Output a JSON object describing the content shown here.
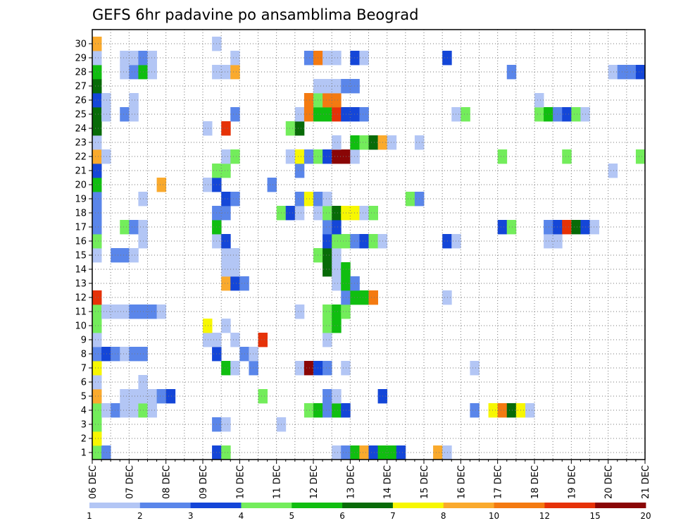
{
  "chart_data": {
    "type": "heatmap",
    "title": "GEFS 6hr padavine po ansamblima Beograd",
    "members": [
      1,
      2,
      3,
      4,
      5,
      6,
      7,
      8,
      9,
      10,
      11,
      12,
      13,
      14,
      15,
      16,
      17,
      18,
      19,
      20,
      21,
      22,
      23,
      24,
      25,
      26,
      27,
      28,
      29,
      30
    ],
    "x_tick_labels": [
      "06 DEC",
      "07 DEC",
      "08 DEC",
      "09 DEC",
      "10 DEC",
      "11 DEC",
      "12 DEC",
      "13 DEC",
      "14 DEC",
      "15 DEC",
      "16 DEC",
      "17 DEC",
      "18 DEC",
      "19 DEC",
      "20 DEC",
      "21 DEC"
    ],
    "steps_per_day": 4,
    "n_steps": 60,
    "grid": true,
    "colorbar": {
      "labels": [
        "1",
        "2",
        "3",
        "4",
        "5",
        "6",
        "7",
        "8",
        "10",
        "12",
        "15",
        "20"
      ],
      "colors": [
        "#b3c6f5",
        "#5a86ea",
        "#1446d8",
        "#73ed5b",
        "#10be10",
        "#086b08",
        "#f7f702",
        "#faaa2d",
        "#f47a11",
        "#e63208",
        "#8a0606"
      ]
    },
    "cells": [
      {
        "m": 1,
        "t": 0,
        "v": 4
      },
      {
        "m": 1,
        "t": 1,
        "v": 2
      },
      {
        "m": 1,
        "t": 13,
        "v": 3
      },
      {
        "m": 1,
        "t": 14,
        "v": 4
      },
      {
        "m": 1,
        "t": 26,
        "v": 1
      },
      {
        "m": 1,
        "t": 27,
        "v": 2
      },
      {
        "m": 1,
        "t": 28,
        "v": 5
      },
      {
        "m": 1,
        "t": 29,
        "v": 8
      },
      {
        "m": 1,
        "t": 30,
        "v": 3
      },
      {
        "m": 1,
        "t": 31,
        "v": 5
      },
      {
        "m": 1,
        "t": 32,
        "v": 5
      },
      {
        "m": 1,
        "t": 33,
        "v": 3
      },
      {
        "m": 1,
        "t": 37,
        "v": 8
      },
      {
        "m": 1,
        "t": 38,
        "v": 1
      },
      {
        "m": 2,
        "t": 0,
        "v": 7
      },
      {
        "m": 3,
        "t": 0,
        "v": 4
      },
      {
        "m": 3,
        "t": 13,
        "v": 2
      },
      {
        "m": 3,
        "t": 14,
        "v": 1
      },
      {
        "m": 3,
        "t": 20,
        "v": 1
      },
      {
        "m": 4,
        "t": 0,
        "v": 4
      },
      {
        "m": 4,
        "t": 1,
        "v": 1
      },
      {
        "m": 4,
        "t": 2,
        "v": 2
      },
      {
        "m": 4,
        "t": 3,
        "v": 1
      },
      {
        "m": 4,
        "t": 4,
        "v": 1
      },
      {
        "m": 4,
        "t": 5,
        "v": 4
      },
      {
        "m": 4,
        "t": 6,
        "v": 1
      },
      {
        "m": 4,
        "t": 23,
        "v": 4
      },
      {
        "m": 4,
        "t": 24,
        "v": 5
      },
      {
        "m": 4,
        "t": 25,
        "v": 2
      },
      {
        "m": 4,
        "t": 26,
        "v": 5
      },
      {
        "m": 4,
        "t": 27,
        "v": 3
      },
      {
        "m": 4,
        "t": 41,
        "v": 2
      },
      {
        "m": 4,
        "t": 43,
        "v": 7
      },
      {
        "m": 4,
        "t": 44,
        "v": 9
      },
      {
        "m": 4,
        "t": 45,
        "v": 6
      },
      {
        "m": 4,
        "t": 46,
        "v": 7
      },
      {
        "m": 4,
        "t": 47,
        "v": 1
      },
      {
        "m": 5,
        "t": 0,
        "v": 8
      },
      {
        "m": 5,
        "t": 3,
        "v": 1
      },
      {
        "m": 5,
        "t": 4,
        "v": 1
      },
      {
        "m": 5,
        "t": 5,
        "v": 1
      },
      {
        "m": 5,
        "t": 6,
        "v": 1
      },
      {
        "m": 5,
        "t": 7,
        "v": 2
      },
      {
        "m": 5,
        "t": 8,
        "v": 3
      },
      {
        "m": 5,
        "t": 18,
        "v": 4
      },
      {
        "m": 5,
        "t": 25,
        "v": 2
      },
      {
        "m": 5,
        "t": 26,
        "v": 1
      },
      {
        "m": 5,
        "t": 31,
        "v": 3
      },
      {
        "m": 6,
        "t": 0,
        "v": 1
      },
      {
        "m": 6,
        "t": 5,
        "v": 1
      },
      {
        "m": 7,
        "t": 0,
        "v": 7
      },
      {
        "m": 7,
        "t": 14,
        "v": 5
      },
      {
        "m": 7,
        "t": 15,
        "v": 1
      },
      {
        "m": 7,
        "t": 17,
        "v": 2
      },
      {
        "m": 7,
        "t": 22,
        "v": 1
      },
      {
        "m": 7,
        "t": 23,
        "v": 11
      },
      {
        "m": 7,
        "t": 24,
        "v": 3
      },
      {
        "m": 7,
        "t": 25,
        "v": 2
      },
      {
        "m": 7,
        "t": 27,
        "v": 1
      },
      {
        "m": 7,
        "t": 41,
        "v": 1
      },
      {
        "m": 8,
        "t": 0,
        "v": 2
      },
      {
        "m": 8,
        "t": 1,
        "v": 3
      },
      {
        "m": 8,
        "t": 2,
        "v": 2
      },
      {
        "m": 8,
        "t": 3,
        "v": 1
      },
      {
        "m": 8,
        "t": 4,
        "v": 2
      },
      {
        "m": 8,
        "t": 5,
        "v": 2
      },
      {
        "m": 8,
        "t": 13,
        "v": 3
      },
      {
        "m": 8,
        "t": 16,
        "v": 2
      },
      {
        "m": 8,
        "t": 17,
        "v": 1
      },
      {
        "m": 9,
        "t": 0,
        "v": 1
      },
      {
        "m": 9,
        "t": 12,
        "v": 1
      },
      {
        "m": 9,
        "t": 13,
        "v": 1
      },
      {
        "m": 9,
        "t": 15,
        "v": 1
      },
      {
        "m": 9,
        "t": 18,
        "v": 10
      },
      {
        "m": 9,
        "t": 25,
        "v": 1
      },
      {
        "m": 10,
        "t": 0,
        "v": 4
      },
      {
        "m": 10,
        "t": 12,
        "v": 7
      },
      {
        "m": 10,
        "t": 14,
        "v": 1
      },
      {
        "m": 10,
        "t": 25,
        "v": 4
      },
      {
        "m": 10,
        "t": 26,
        "v": 5
      },
      {
        "m": 11,
        "t": 0,
        "v": 4
      },
      {
        "m": 11,
        "t": 1,
        "v": 1
      },
      {
        "m": 11,
        "t": 2,
        "v": 1
      },
      {
        "m": 11,
        "t": 3,
        "v": 1
      },
      {
        "m": 11,
        "t": 4,
        "v": 2
      },
      {
        "m": 11,
        "t": 5,
        "v": 2
      },
      {
        "m": 11,
        "t": 6,
        "v": 2
      },
      {
        "m": 11,
        "t": 7,
        "v": 1
      },
      {
        "m": 11,
        "t": 22,
        "v": 1
      },
      {
        "m": 11,
        "t": 25,
        "v": 4
      },
      {
        "m": 11,
        "t": 26,
        "v": 5
      },
      {
        "m": 11,
        "t": 27,
        "v": 4
      },
      {
        "m": 12,
        "t": 0,
        "v": 10
      },
      {
        "m": 12,
        "t": 27,
        "v": 2
      },
      {
        "m": 12,
        "t": 28,
        "v": 5
      },
      {
        "m": 12,
        "t": 29,
        "v": 5
      },
      {
        "m": 12,
        "t": 30,
        "v": 9
      },
      {
        "m": 12,
        "t": 38,
        "v": 1
      },
      {
        "m": 13,
        "t": 14,
        "v": 8
      },
      {
        "m": 13,
        "t": 15,
        "v": 3
      },
      {
        "m": 13,
        "t": 16,
        "v": 2
      },
      {
        "m": 13,
        "t": 26,
        "v": 1
      },
      {
        "m": 13,
        "t": 27,
        "v": 5
      },
      {
        "m": 13,
        "t": 28,
        "v": 2
      },
      {
        "m": 14,
        "t": 14,
        "v": 1
      },
      {
        "m": 14,
        "t": 15,
        "v": 1
      },
      {
        "m": 14,
        "t": 25,
        "v": 6
      },
      {
        "m": 14,
        "t": 26,
        "v": 1
      },
      {
        "m": 14,
        "t": 27,
        "v": 5
      },
      {
        "m": 15,
        "t": 0,
        "v": 1
      },
      {
        "m": 15,
        "t": 2,
        "v": 2
      },
      {
        "m": 15,
        "t": 3,
        "v": 2
      },
      {
        "m": 15,
        "t": 4,
        "v": 1
      },
      {
        "m": 15,
        "t": 14,
        "v": 1
      },
      {
        "m": 15,
        "t": 15,
        "v": 1
      },
      {
        "m": 15,
        "t": 24,
        "v": 4
      },
      {
        "m": 15,
        "t": 25,
        "v": 6
      },
      {
        "m": 15,
        "t": 26,
        "v": 1
      },
      {
        "m": 16,
        "t": 0,
        "v": 4
      },
      {
        "m": 16,
        "t": 5,
        "v": 1
      },
      {
        "m": 16,
        "t": 13,
        "v": 1
      },
      {
        "m": 16,
        "t": 14,
        "v": 3
      },
      {
        "m": 16,
        "t": 25,
        "v": 3
      },
      {
        "m": 16,
        "t": 26,
        "v": 4
      },
      {
        "m": 16,
        "t": 27,
        "v": 4
      },
      {
        "m": 16,
        "t": 28,
        "v": 2
      },
      {
        "m": 16,
        "t": 29,
        "v": 3
      },
      {
        "m": 16,
        "t": 30,
        "v": 4
      },
      {
        "m": 16,
        "t": 31,
        "v": 1
      },
      {
        "m": 16,
        "t": 38,
        "v": 3
      },
      {
        "m": 16,
        "t": 39,
        "v": 1
      },
      {
        "m": 16,
        "t": 49,
        "v": 1
      },
      {
        "m": 16,
        "t": 50,
        "v": 1
      },
      {
        "m": 17,
        "t": 0,
        "v": 2
      },
      {
        "m": 17,
        "t": 3,
        "v": 4
      },
      {
        "m": 17,
        "t": 4,
        "v": 2
      },
      {
        "m": 17,
        "t": 5,
        "v": 1
      },
      {
        "m": 17,
        "t": 13,
        "v": 5
      },
      {
        "m": 17,
        "t": 25,
        "v": 2
      },
      {
        "m": 17,
        "t": 26,
        "v": 3
      },
      {
        "m": 17,
        "t": 44,
        "v": 3
      },
      {
        "m": 17,
        "t": 45,
        "v": 4
      },
      {
        "m": 17,
        "t": 49,
        "v": 2
      },
      {
        "m": 17,
        "t": 50,
        "v": 3
      },
      {
        "m": 17,
        "t": 51,
        "v": 10
      },
      {
        "m": 17,
        "t": 52,
        "v": 6
      },
      {
        "m": 17,
        "t": 53,
        "v": 3
      },
      {
        "m": 17,
        "t": 54,
        "v": 1
      },
      {
        "m": 18,
        "t": 0,
        "v": 2
      },
      {
        "m": 18,
        "t": 13,
        "v": 2
      },
      {
        "m": 18,
        "t": 14,
        "v": 2
      },
      {
        "m": 18,
        "t": 20,
        "v": 4
      },
      {
        "m": 18,
        "t": 21,
        "v": 3
      },
      {
        "m": 18,
        "t": 22,
        "v": 1
      },
      {
        "m": 18,
        "t": 24,
        "v": 1
      },
      {
        "m": 18,
        "t": 25,
        "v": 4
      },
      {
        "m": 18,
        "t": 26,
        "v": 6
      },
      {
        "m": 18,
        "t": 27,
        "v": 7
      },
      {
        "m": 18,
        "t": 28,
        "v": 7
      },
      {
        "m": 18,
        "t": 29,
        "v": 1
      },
      {
        "m": 18,
        "t": 30,
        "v": 4
      },
      {
        "m": 19,
        "t": 0,
        "v": 2
      },
      {
        "m": 19,
        "t": 5,
        "v": 1
      },
      {
        "m": 19,
        "t": 14,
        "v": 3
      },
      {
        "m": 19,
        "t": 15,
        "v": 2
      },
      {
        "m": 19,
        "t": 22,
        "v": 2
      },
      {
        "m": 19,
        "t": 23,
        "v": 7
      },
      {
        "m": 19,
        "t": 24,
        "v": 2
      },
      {
        "m": 19,
        "t": 25,
        "v": 1
      },
      {
        "m": 19,
        "t": 34,
        "v": 4
      },
      {
        "m": 19,
        "t": 35,
        "v": 2
      },
      {
        "m": 20,
        "t": 0,
        "v": 5
      },
      {
        "m": 20,
        "t": 7,
        "v": 8
      },
      {
        "m": 20,
        "t": 12,
        "v": 1
      },
      {
        "m": 20,
        "t": 13,
        "v": 3
      },
      {
        "m": 20,
        "t": 19,
        "v": 2
      },
      {
        "m": 21,
        "t": 0,
        "v": 3
      },
      {
        "m": 21,
        "t": 13,
        "v": 4
      },
      {
        "m": 21,
        "t": 14,
        "v": 4
      },
      {
        "m": 21,
        "t": 22,
        "v": 2
      },
      {
        "m": 21,
        "t": 56,
        "v": 1
      },
      {
        "m": 22,
        "t": 0,
        "v": 8
      },
      {
        "m": 22,
        "t": 1,
        "v": 1
      },
      {
        "m": 22,
        "t": 14,
        "v": 1
      },
      {
        "m": 22,
        "t": 15,
        "v": 4
      },
      {
        "m": 22,
        "t": 21,
        "v": 1
      },
      {
        "m": 22,
        "t": 22,
        "v": 7
      },
      {
        "m": 22,
        "t": 23,
        "v": 2
      },
      {
        "m": 22,
        "t": 24,
        "v": 4
      },
      {
        "m": 22,
        "t": 25,
        "v": 3
      },
      {
        "m": 22,
        "t": 26,
        "v": 11
      },
      {
        "m": 22,
        "t": 27,
        "v": 11
      },
      {
        "m": 22,
        "t": 28,
        "v": 1
      },
      {
        "m": 22,
        "t": 44,
        "v": 4
      },
      {
        "m": 22,
        "t": 51,
        "v": 4
      },
      {
        "m": 22,
        "t": 59,
        "v": 4
      },
      {
        "m": 23,
        "t": 0,
        "v": 1
      },
      {
        "m": 23,
        "t": 26,
        "v": 1
      },
      {
        "m": 23,
        "t": 28,
        "v": 5
      },
      {
        "m": 23,
        "t": 29,
        "v": 4
      },
      {
        "m": 23,
        "t": 30,
        "v": 6
      },
      {
        "m": 23,
        "t": 31,
        "v": 8
      },
      {
        "m": 23,
        "t": 32,
        "v": 1
      },
      {
        "m": 23,
        "t": 35,
        "v": 1
      },
      {
        "m": 24,
        "t": 0,
        "v": 6
      },
      {
        "m": 24,
        "t": 12,
        "v": 1
      },
      {
        "m": 24,
        "t": 14,
        "v": 10
      },
      {
        "m": 24,
        "t": 21,
        "v": 4
      },
      {
        "m": 24,
        "t": 22,
        "v": 6
      },
      {
        "m": 25,
        "t": 0,
        "v": 6
      },
      {
        "m": 25,
        "t": 1,
        "v": 1
      },
      {
        "m": 25,
        "t": 3,
        "v": 2
      },
      {
        "m": 25,
        "t": 4,
        "v": 1
      },
      {
        "m": 25,
        "t": 15,
        "v": 2
      },
      {
        "m": 25,
        "t": 22,
        "v": 1
      },
      {
        "m": 25,
        "t": 23,
        "v": 9
      },
      {
        "m": 25,
        "t": 24,
        "v": 5
      },
      {
        "m": 25,
        "t": 25,
        "v": 5
      },
      {
        "m": 25,
        "t": 26,
        "v": 10
      },
      {
        "m": 25,
        "t": 27,
        "v": 3
      },
      {
        "m": 25,
        "t": 28,
        "v": 3
      },
      {
        "m": 25,
        "t": 29,
        "v": 2
      },
      {
        "m": 25,
        "t": 39,
        "v": 1
      },
      {
        "m": 25,
        "t": 40,
        "v": 4
      },
      {
        "m": 25,
        "t": 48,
        "v": 4
      },
      {
        "m": 25,
        "t": 49,
        "v": 5
      },
      {
        "m": 25,
        "t": 50,
        "v": 2
      },
      {
        "m": 25,
        "t": 51,
        "v": 3
      },
      {
        "m": 25,
        "t": 52,
        "v": 4
      },
      {
        "m": 25,
        "t": 53,
        "v": 1
      },
      {
        "m": 26,
        "t": 0,
        "v": 3
      },
      {
        "m": 26,
        "t": 1,
        "v": 1
      },
      {
        "m": 26,
        "t": 4,
        "v": 1
      },
      {
        "m": 26,
        "t": 23,
        "v": 9
      },
      {
        "m": 26,
        "t": 24,
        "v": 4
      },
      {
        "m": 26,
        "t": 25,
        "v": 9
      },
      {
        "m": 26,
        "t": 26,
        "v": 9
      },
      {
        "m": 26,
        "t": 48,
        "v": 1
      },
      {
        "m": 27,
        "t": 0,
        "v": 6
      },
      {
        "m": 27,
        "t": 24,
        "v": 1
      },
      {
        "m": 27,
        "t": 25,
        "v": 1
      },
      {
        "m": 27,
        "t": 26,
        "v": 1
      },
      {
        "m": 27,
        "t": 27,
        "v": 2
      },
      {
        "m": 27,
        "t": 28,
        "v": 2
      },
      {
        "m": 28,
        "t": 0,
        "v": 5
      },
      {
        "m": 28,
        "t": 3,
        "v": 1
      },
      {
        "m": 28,
        "t": 4,
        "v": 2
      },
      {
        "m": 28,
        "t": 5,
        "v": 5
      },
      {
        "m": 28,
        "t": 6,
        "v": 1
      },
      {
        "m": 28,
        "t": 13,
        "v": 1
      },
      {
        "m": 28,
        "t": 14,
        "v": 1
      },
      {
        "m": 28,
        "t": 15,
        "v": 8
      },
      {
        "m": 28,
        "t": 45,
        "v": 2
      },
      {
        "m": 28,
        "t": 56,
        "v": 1
      },
      {
        "m": 28,
        "t": 57,
        "v": 2
      },
      {
        "m": 28,
        "t": 58,
        "v": 2
      },
      {
        "m": 28,
        "t": 59,
        "v": 3
      },
      {
        "m": 29,
        "t": 0,
        "v": 1
      },
      {
        "m": 29,
        "t": 3,
        "v": 1
      },
      {
        "m": 29,
        "t": 4,
        "v": 1
      },
      {
        "m": 29,
        "t": 5,
        "v": 2
      },
      {
        "m": 29,
        "t": 6,
        "v": 1
      },
      {
        "m": 29,
        "t": 15,
        "v": 1
      },
      {
        "m": 29,
        "t": 23,
        "v": 2
      },
      {
        "m": 29,
        "t": 24,
        "v": 9
      },
      {
        "m": 29,
        "t": 25,
        "v": 1
      },
      {
        "m": 29,
        "t": 26,
        "v": 1
      },
      {
        "m": 29,
        "t": 28,
        "v": 3
      },
      {
        "m": 29,
        "t": 29,
        "v": 1
      },
      {
        "m": 29,
        "t": 38,
        "v": 3
      },
      {
        "m": 30,
        "t": 0,
        "v": 8
      },
      {
        "m": 30,
        "t": 13,
        "v": 1
      }
    ]
  }
}
